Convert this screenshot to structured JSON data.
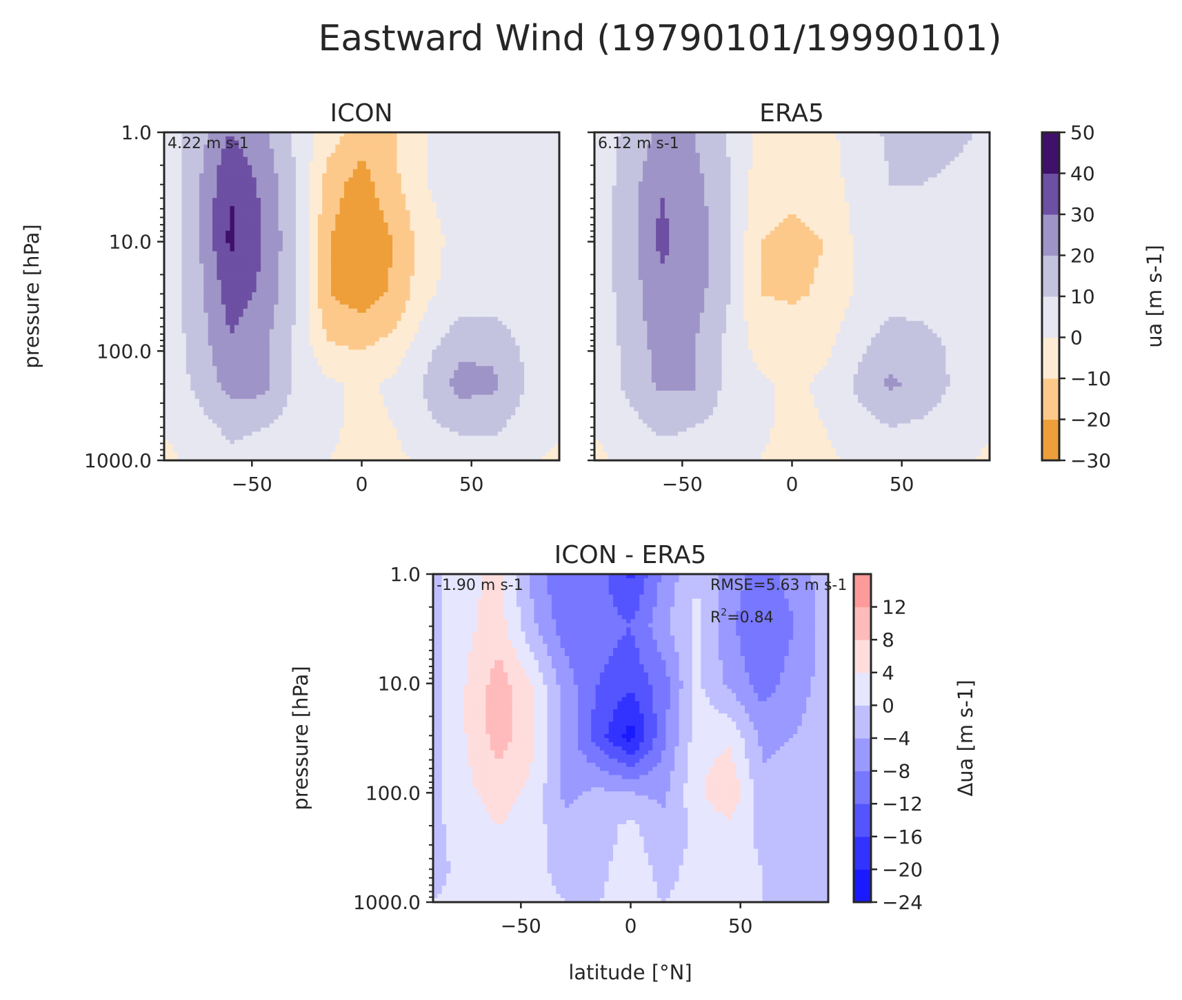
{
  "figure": {
    "title": "Eastward Wind (19790101/19990101)"
  },
  "chart_data": [
    {
      "type": "heatmap",
      "subtype": "filled-contour",
      "title": "ICON",
      "xlabel": "",
      "ylabel": "pressure [hPa]",
      "xlim": [
        -90,
        90
      ],
      "ylim": [
        1000.0,
        1.0
      ],
      "yscale": "log",
      "xticks": [
        "−50",
        "0",
        "50"
      ],
      "yticks": [
        "1.0",
        "10.0",
        "100.0",
        "1000.0"
      ],
      "annotation": "4.22 m s-1",
      "colorbar_key": "ua",
      "field": {
        "lat": [
          -90,
          -75,
          -60,
          -45,
          -30,
          -15,
          0,
          15,
          30,
          45,
          60,
          75,
          90
        ],
        "pressure": [
          1,
          3,
          10,
          30,
          100,
          200,
          500,
          1000
        ],
        "ua": [
          [
            3,
            15,
            30,
            22,
            8,
            -5,
            -15,
            -10,
            0,
            5,
            6,
            4,
            2
          ],
          [
            3,
            18,
            40,
            28,
            10,
            -15,
            -25,
            -12,
            0,
            4,
            4,
            3,
            2
          ],
          [
            3,
            18,
            42,
            30,
            12,
            -20,
            -28,
            -20,
            -3,
            3,
            3,
            2,
            2
          ],
          [
            3,
            16,
            35,
            28,
            10,
            -20,
            -25,
            -18,
            -2,
            5,
            5,
            3,
            2
          ],
          [
            3,
            14,
            28,
            22,
            8,
            -8,
            -10,
            -5,
            8,
            18,
            18,
            8,
            3
          ],
          [
            3,
            12,
            24,
            24,
            8,
            2,
            -2,
            2,
            12,
            24,
            22,
            10,
            3
          ],
          [
            1,
            6,
            12,
            10,
            6,
            2,
            -3,
            0,
            8,
            12,
            12,
            5,
            2
          ],
          [
            -3,
            4,
            8,
            6,
            3,
            0,
            -3,
            -2,
            2,
            4,
            4,
            2,
            -3
          ]
        ]
      }
    },
    {
      "type": "heatmap",
      "subtype": "filled-contour",
      "title": "ERA5",
      "xlabel": "",
      "ylabel": "",
      "xlim": [
        -90,
        90
      ],
      "ylim": [
        1000.0,
        1.0
      ],
      "yscale": "log",
      "xticks": [
        "−50",
        "0",
        "50"
      ],
      "yticks": [],
      "annotation": "6.12 m s-1",
      "colorbar_key": "ua",
      "field": {
        "lat": [
          -90,
          -75,
          -60,
          -45,
          -30,
          -15,
          0,
          15,
          30,
          45,
          60,
          75,
          90
        ],
        "pressure": [
          1,
          3,
          10,
          30,
          100,
          200,
          500,
          1000
        ],
        "ua": [
          [
            4,
            12,
            22,
            20,
            10,
            -2,
            -5,
            -3,
            5,
            12,
            14,
            12,
            8
          ],
          [
            4,
            14,
            30,
            24,
            12,
            -5,
            -8,
            -5,
            4,
            10,
            10,
            8,
            6
          ],
          [
            4,
            14,
            32,
            26,
            14,
            -10,
            -12,
            -10,
            2,
            8,
            8,
            6,
            5
          ],
          [
            4,
            14,
            28,
            25,
            12,
            -10,
            -11,
            -9,
            2,
            6,
            6,
            5,
            4
          ],
          [
            4,
            12,
            24,
            20,
            8,
            -3,
            -6,
            -2,
            8,
            16,
            14,
            8,
            4
          ],
          [
            4,
            12,
            22,
            22,
            8,
            2,
            -2,
            2,
            12,
            22,
            16,
            8,
            4
          ],
          [
            1,
            6,
            12,
            10,
            6,
            2,
            -3,
            0,
            6,
            10,
            8,
            5,
            2
          ],
          [
            -3,
            3,
            6,
            5,
            3,
            0,
            -3,
            -2,
            2,
            4,
            4,
            2,
            -2
          ]
        ]
      }
    },
    {
      "type": "heatmap",
      "subtype": "filled-contour",
      "title": "ICON - ERA5",
      "xlabel": "latitude [°N]",
      "ylabel": "pressure [hPa]",
      "xlim": [
        -90,
        90
      ],
      "ylim": [
        1000.0,
        1.0
      ],
      "yscale": "log",
      "xticks": [
        "−50",
        "0",
        "50"
      ],
      "yticks": [
        "1.0",
        "10.0",
        "100.0",
        "1000.0"
      ],
      "annotation": "-1.90 m s-1",
      "stats": {
        "rmse": "RMSE=5.63 m s-1",
        "r2_label": "R",
        "r2_sup": "2",
        "r2_value": "=0.84"
      },
      "colorbar_key": "dua",
      "field": {
        "lat": [
          -90,
          -75,
          -60,
          -45,
          -30,
          -15,
          0,
          15,
          30,
          45,
          60,
          75,
          90
        ],
        "pressure": [
          1,
          3,
          10,
          30,
          100,
          200,
          500,
          1000
        ],
        "ua": [
          [
            -1,
            3,
            5,
            -5,
            -12,
            -10,
            -17,
            -7,
            0,
            -6,
            -10,
            -6,
            -2
          ],
          [
            -1,
            3,
            6,
            -3,
            -10,
            -10,
            -12,
            -5,
            1,
            -7,
            -12,
            -8,
            -2
          ],
          [
            -1,
            4,
            10,
            4,
            -6,
            -12,
            -15,
            -10,
            1,
            -5,
            -10,
            -6,
            -2
          ],
          [
            -1,
            4,
            10,
            5,
            -5,
            -14,
            -22,
            -9,
            2,
            3,
            -5,
            -4,
            -1
          ],
          [
            -1,
            3,
            6,
            3,
            -5,
            -3,
            -4,
            -5,
            3,
            8,
            -3,
            -2,
            -1
          ],
          [
            -1,
            2,
            4,
            2,
            -3,
            -2,
            1,
            -3,
            1,
            3,
            -1,
            -1,
            -1
          ],
          [
            -1,
            1,
            2,
            1,
            -1,
            -1,
            2,
            -1,
            1,
            1,
            0,
            -1,
            -1
          ],
          [
            0,
            1,
            2,
            1,
            0,
            0,
            1,
            0,
            1,
            1,
            0,
            -1,
            0
          ]
        ]
      }
    }
  ],
  "colorbars": {
    "ua": {
      "label": "ua [m s-1]",
      "levels": [
        -30,
        -20,
        -10,
        0,
        10,
        20,
        30,
        40,
        50
      ],
      "tick_labels": [
        "−30",
        "−20",
        "−10",
        "0",
        "10",
        "20",
        "30",
        "40",
        "50"
      ],
      "colors": [
        "#ee9f3a",
        "#fdc98b",
        "#fdebd3",
        "#e7e7f2",
        "#c4c3df",
        "#9f94c7",
        "#6d4fa3",
        "#3f1168"
      ]
    },
    "dua": {
      "label": "Δua [m s-1]",
      "levels": [
        -24,
        -20,
        -16,
        -12,
        -8,
        -4,
        0,
        4,
        8,
        12
      ],
      "tick_labels": [
        "−24",
        "−20",
        "−16",
        "−12",
        "−8",
        "−4",
        "0",
        "4",
        "8",
        "12"
      ],
      "colors": [
        "#1a1aff",
        "#3333ff",
        "#5555ff",
        "#7777ff",
        "#9999ff",
        "#bfbfff",
        "#e6e6ff",
        "#ffdddd",
        "#ffbbbb",
        "#ff9a9a"
      ]
    }
  }
}
